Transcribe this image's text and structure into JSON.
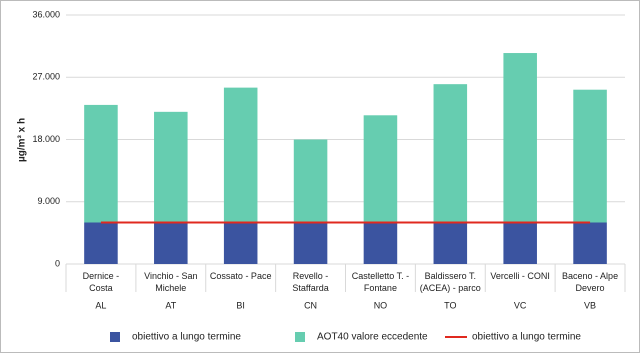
{
  "chart_data": {
    "type": "stacked-bar-line",
    "y_label": "µg/m³ x h",
    "categories": [
      "Dernice - Costa",
      "Vinchio - San Michele",
      "Cossato - Pace",
      "Revello - Staffarda",
      "Castelletto T. - Fontane",
      "Baldissero T. (ACEA) - parco",
      "Vercelli - CONI",
      "Baceno - Alpe Devero"
    ],
    "groups": [
      "AL",
      "AT",
      "BI",
      "CN",
      "NO",
      "TO",
      "VC",
      "VB"
    ],
    "series": [
      {
        "name": "obiettivo a lungo termine",
        "color": "#3b54a0",
        "kind": "bar",
        "values": [
          6000,
          6000,
          6000,
          6000,
          6000,
          6000,
          6000,
          6000
        ]
      },
      {
        "name": "AOT40  valore eccedente",
        "color": "#66cdb0",
        "kind": "bar",
        "values": [
          17000,
          16000,
          19500,
          12000,
          15500,
          20000,
          24500,
          19200
        ]
      },
      {
        "name": "obiettivo a lungo termine",
        "color": "#e0291f",
        "kind": "line",
        "values": [
          6000,
          6000,
          6000,
          6000,
          6000,
          6000,
          6000,
          6000
        ]
      }
    ],
    "ylim": [
      0,
      36000
    ],
    "yticks": [
      0,
      {
        "value": 9000,
        "label": "9.000"
      },
      {
        "value": 18000,
        "label": "18.000"
      },
      {
        "value": 27000,
        "label": "27.000"
      },
      {
        "value": 36000,
        "label": "36.000"
      }
    ],
    "grid": true
  }
}
